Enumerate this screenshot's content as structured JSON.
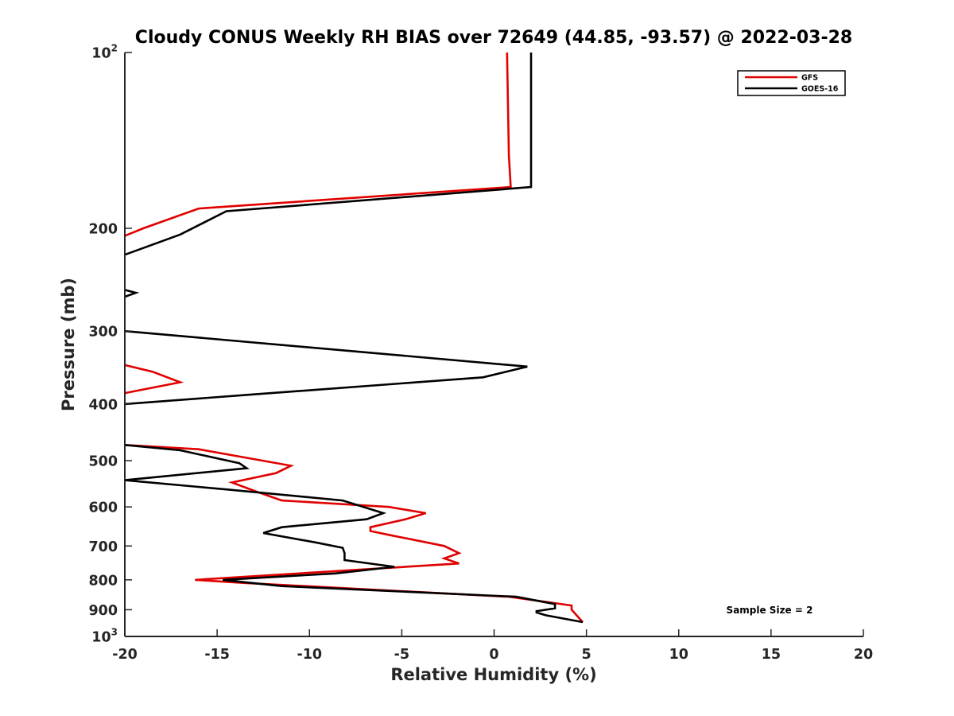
{
  "chart_data": {
    "type": "line",
    "title": "Cloudy CONUS Weekly RH BIAS over 72649 (44.85, -93.57) @ 2022-03-28",
    "xlabel": "Relative Humidity (%)",
    "ylabel": "Pressure (mb)",
    "xlim": [
      -20,
      20
    ],
    "ylim": [
      100,
      1000
    ],
    "y_scale": "log",
    "y_reversed": true,
    "grid": false,
    "x_ticks": [
      -20,
      -15,
      -10,
      -5,
      0,
      5,
      10,
      15,
      20
    ],
    "x_tick_labels": [
      "-20",
      "-15",
      "-10",
      "-5",
      "0",
      "5",
      "10",
      "15",
      "20"
    ],
    "y_ticks": [
      {
        "value": 100,
        "base": "10",
        "exp": "2"
      },
      {
        "value": 200,
        "label": "200"
      },
      {
        "value": 300,
        "label": "300"
      },
      {
        "value": 400,
        "label": "400"
      },
      {
        "value": 500,
        "label": "500"
      },
      {
        "value": 600,
        "label": "600"
      },
      {
        "value": 700,
        "label": "700"
      },
      {
        "value": 800,
        "label": "800"
      },
      {
        "value": 900,
        "label": "900"
      },
      {
        "value": 1000,
        "base": "10",
        "exp": "3"
      }
    ],
    "legend_position": "top-right",
    "annotation": "Sample Size = 2",
    "series": [
      {
        "name": "GFS",
        "color": "#e00000",
        "segments": [
          [
            [
              0.7,
              100
            ],
            [
              0.8,
              150
            ],
            [
              0.9,
              170
            ],
            [
              -16,
              185
            ],
            [
              -19,
              200
            ],
            [
              -20,
              206
            ]
          ],
          [
            [
              -20,
              343
            ],
            [
              -18.5,
              352
            ],
            [
              -17,
              367
            ],
            [
              -20,
              383
            ]
          ],
          [
            [
              -20,
              470
            ],
            [
              -16,
              478
            ],
            [
              -11,
              510
            ],
            [
              -11.8,
              525
            ],
            [
              -14.2,
              545
            ],
            [
              -13,
              563
            ],
            [
              -11.5,
              585
            ],
            [
              -5.7,
              600
            ],
            [
              -3.7,
              615
            ],
            [
              -4.8,
              630
            ],
            [
              -6.7,
              650
            ],
            [
              -6.7,
              660
            ],
            [
              -5.7,
              670
            ],
            [
              -2.7,
              700
            ],
            [
              -1.9,
              720
            ],
            [
              -2.7,
              735
            ],
            [
              -1.9,
              750
            ],
            [
              -16.2,
              800
            ],
            [
              -13.5,
              810
            ],
            [
              0.8,
              855
            ],
            [
              4.2,
              885
            ],
            [
              4.2,
              900
            ],
            [
              4.8,
              945
            ]
          ]
        ]
      },
      {
        "name": "GOES-16",
        "color": "#000000",
        "segments": [
          [
            [
              2.0,
              100
            ],
            [
              2.0,
              150
            ],
            [
              2.0,
              170
            ],
            [
              -14.5,
              187
            ],
            [
              -17,
              205
            ],
            [
              -20,
              222
            ]
          ],
          [
            [
              -20,
              255
            ],
            [
              -19.4,
              258
            ],
            [
              -20,
              262
            ]
          ],
          [
            [
              -20,
              300
            ],
            [
              1.8,
              345
            ],
            [
              -0.6,
              360
            ],
            [
              -13,
              385
            ],
            [
              -20,
              400
            ]
          ],
          [
            [
              -20,
              470
            ],
            [
              -17,
              480
            ],
            [
              -13.8,
              505
            ],
            [
              -13.4,
              515
            ],
            [
              -20,
              540
            ],
            [
              -14.5,
              560
            ],
            [
              -8.2,
              585
            ],
            [
              -6,
              615
            ],
            [
              -6.9,
              630
            ],
            [
              -11.5,
              650
            ],
            [
              -12.5,
              665
            ],
            [
              -9.7,
              690
            ],
            [
              -8.2,
              705
            ],
            [
              -8.1,
              720
            ],
            [
              -8.1,
              740
            ],
            [
              -5.4,
              760
            ],
            [
              -8.6,
              780
            ],
            [
              -14.7,
              800
            ],
            [
              -11.5,
              820
            ],
            [
              1.2,
              855
            ],
            [
              3.3,
              880
            ],
            [
              3.3,
              895
            ],
            [
              2.3,
              905
            ],
            [
              2.3,
              910
            ],
            [
              2.8,
              920
            ],
            [
              4.8,
              945
            ]
          ]
        ]
      }
    ]
  }
}
